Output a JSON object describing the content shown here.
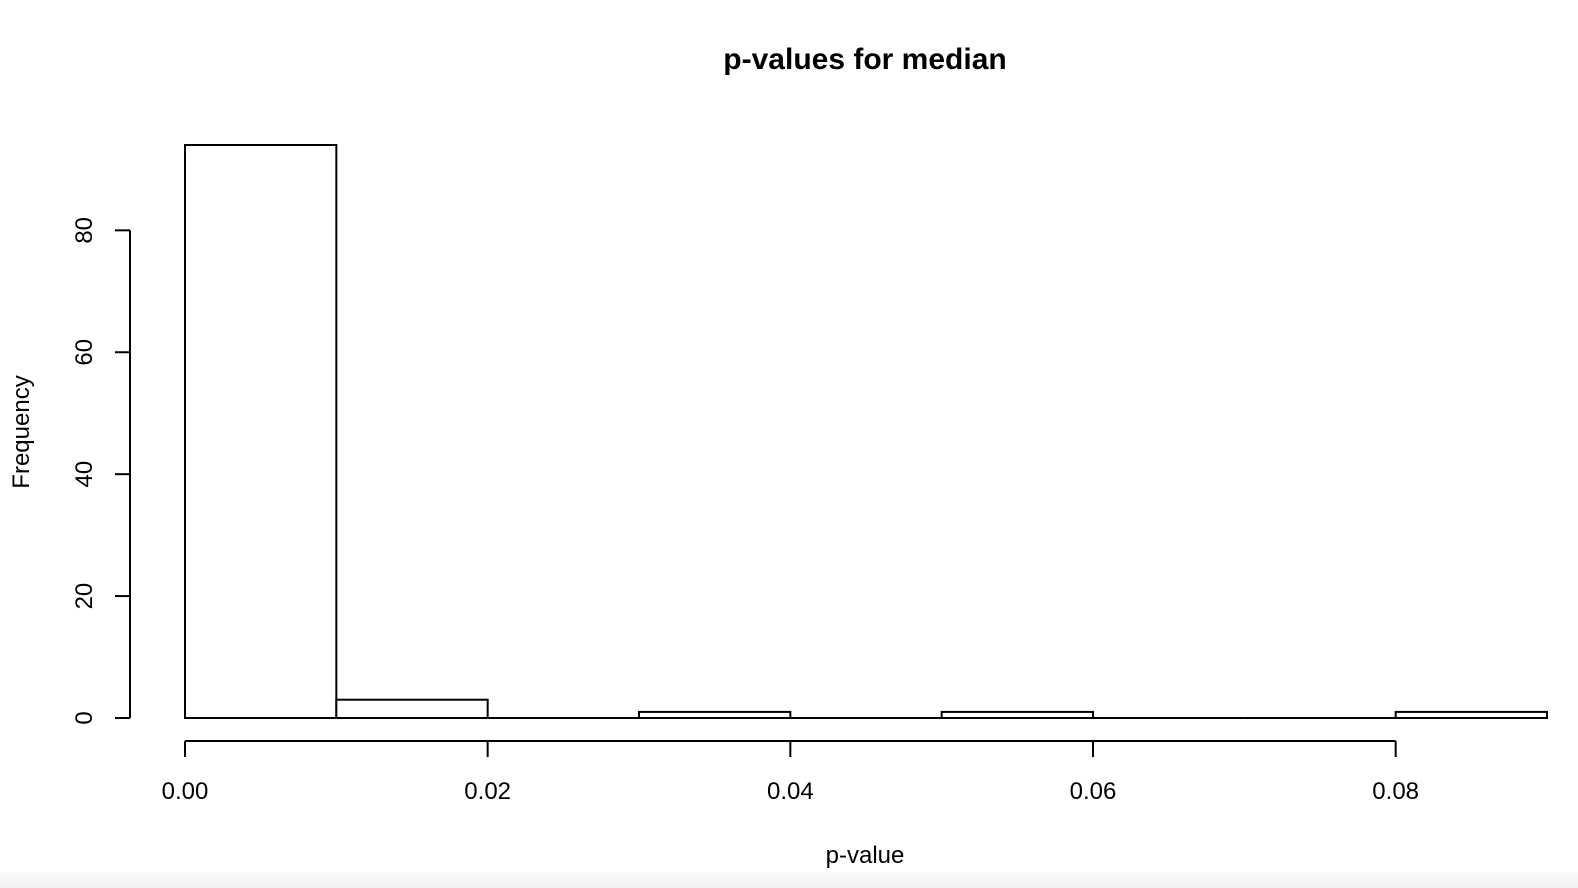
{
  "chart_data": {
    "type": "bar",
    "title": "p-values for median",
    "xlabel": "p-value",
    "ylabel": "Frequency",
    "bins": [
      {
        "start": 0.0,
        "end": 0.01,
        "count": 94
      },
      {
        "start": 0.01,
        "end": 0.02,
        "count": 3
      },
      {
        "start": 0.02,
        "end": 0.03,
        "count": 0
      },
      {
        "start": 0.03,
        "end": 0.04,
        "count": 1
      },
      {
        "start": 0.04,
        "end": 0.05,
        "count": 0
      },
      {
        "start": 0.05,
        "end": 0.06,
        "count": 1
      },
      {
        "start": 0.06,
        "end": 0.07,
        "count": 0
      },
      {
        "start": 0.07,
        "end": 0.08,
        "count": 0
      },
      {
        "start": 0.08,
        "end": 0.09,
        "count": 1
      }
    ],
    "xticks": [
      "0.00",
      "0.02",
      "0.04",
      "0.06",
      "0.08"
    ],
    "yticks": [
      "0",
      "20",
      "40",
      "60",
      "80"
    ],
    "xlim": [
      0,
      0.09
    ],
    "ylim": [
      0,
      94
    ],
    "grid": false,
    "legend": "none",
    "bar_fill": "#ffffff",
    "bar_stroke": "#000000"
  }
}
